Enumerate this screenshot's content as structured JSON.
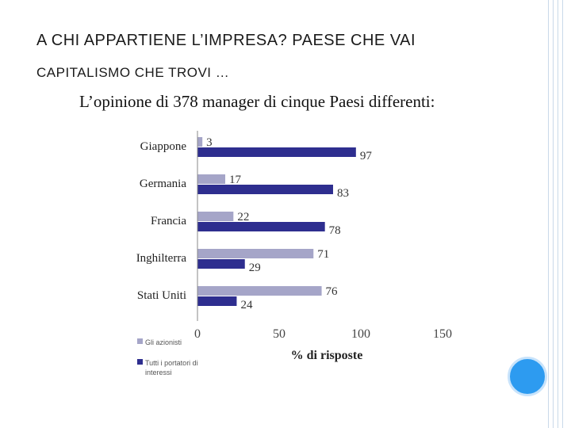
{
  "slide": {
    "title_line1": "A CHI APPARTIENE L’IMPRESA? PAESE CHE VAI",
    "title_line2": "CAPITALISMO CHE TROVI …",
    "subtitle": "L’opinione di 378 manager di cinque Paesi differenti:"
  },
  "chart_data": {
    "type": "bar",
    "orientation": "horizontal",
    "categories": [
      "Giappone",
      "Germania",
      "Francia",
      "Inghilterra",
      "Stati Uniti"
    ],
    "series": [
      {
        "name": "Gli azionisti",
        "values": [
          3,
          17,
          22,
          71,
          76
        ],
        "color": "#a5a5c8"
      },
      {
        "name": "Tutti i portatori di interessi",
        "values": [
          97,
          83,
          78,
          29,
          24
        ],
        "color": "#2e2e8f"
      }
    ],
    "xlabel": "% di risposte",
    "xlim": [
      0,
      150
    ],
    "xticks": [
      0,
      50,
      100,
      150
    ],
    "grid": false,
    "legend_position": "bottom-left"
  }
}
